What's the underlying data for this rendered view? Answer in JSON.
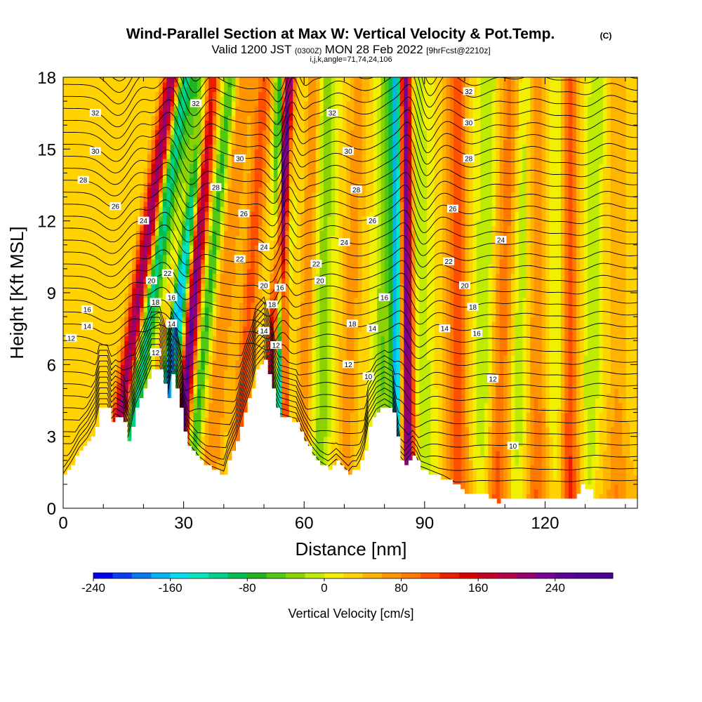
{
  "chart_data": {
    "type": "heatmap",
    "title": "Wind-Parallel Section at Max W: Vertical Velocity & Pot.Temp.",
    "title_mark": "(C)",
    "subtitle_main": "Valid 1200 JST",
    "subtitle_utc": "(0300Z)",
    "subtitle_date": "MON 28 Feb 2022",
    "subtitle_run": "[9hrFcst@2210z]",
    "subtitle_index": "i,j,k,angle=71,74,24,106",
    "xlabel": "Distance [nm]",
    "ylabel": "Height [Kft MSL]",
    "xlim": [
      0,
      143
    ],
    "ylim": [
      0,
      18
    ],
    "x_ticks": [
      "0",
      "30",
      "60",
      "90",
      "120"
    ],
    "y_ticks": [
      "0",
      "3",
      "6",
      "9",
      "12",
      "15",
      "18"
    ],
    "colorbar": {
      "label": "Vertical Velocity [cm/s]",
      "min": -240,
      "max": 300,
      "step": 20,
      "tick_labels": [
        "-240",
        "-160",
        "-80",
        "0",
        "80",
        "160",
        "240"
      ],
      "colors": [
        "#0000f0",
        "#0c3cf5",
        "#0a78f0",
        "#00b4f0",
        "#00dcf0",
        "#00e6be",
        "#00d28c",
        "#00be50",
        "#20b420",
        "#50c814",
        "#8cd200",
        "#beeb00",
        "#f0f000",
        "#ffd200",
        "#ffb400",
        "#ff9600",
        "#ff7800",
        "#ff5000",
        "#f01e00",
        "#dc0000",
        "#c80028",
        "#b4004b",
        "#96006e",
        "#780096",
        "#5a0096",
        "#500096",
        "#4b0096"
      ]
    },
    "terrain_kft": [
      [
        0,
        1.3
      ],
      [
        2,
        1.8
      ],
      [
        4,
        2.4
      ],
      [
        6,
        2.8
      ],
      [
        8,
        3.4
      ],
      [
        9,
        4.2
      ],
      [
        11,
        4.2
      ],
      [
        12,
        3.6
      ],
      [
        13,
        3.8
      ],
      [
        15,
        3.6
      ],
      [
        16,
        2.8
      ],
      [
        17,
        3.4
      ],
      [
        18,
        4.2
      ],
      [
        20,
        5.0
      ],
      [
        22,
        5.8
      ],
      [
        24,
        5.8
      ],
      [
        26,
        4.6
      ],
      [
        27,
        5.6
      ],
      [
        28,
        5.0
      ],
      [
        29,
        4.2
      ],
      [
        30,
        3.2
      ],
      [
        31,
        2.6
      ],
      [
        34,
        2.0
      ],
      [
        37,
        1.6
      ],
      [
        40,
        1.4
      ],
      [
        41,
        2.0
      ],
      [
        43,
        2.8
      ],
      [
        45,
        4.0
      ],
      [
        47,
        5.0
      ],
      [
        48,
        5.8
      ],
      [
        50,
        6.2
      ],
      [
        51,
        5.6
      ],
      [
        52,
        5.0
      ],
      [
        53,
        4.2
      ],
      [
        54,
        3.8
      ],
      [
        58,
        3.6
      ],
      [
        60,
        2.8
      ],
      [
        62,
        2.2
      ],
      [
        64,
        1.8
      ],
      [
        66,
        1.6
      ],
      [
        68,
        1.9
      ],
      [
        71,
        1.4
      ],
      [
        72,
        1.6
      ],
      [
        73,
        1.6
      ],
      [
        74,
        1.9
      ],
      [
        75,
        2.4
      ],
      [
        76,
        3.4
      ],
      [
        78,
        4.0
      ],
      [
        80,
        4.2
      ],
      [
        82,
        4.0
      ],
      [
        83,
        3.0
      ],
      [
        84,
        2.0
      ],
      [
        85,
        1.8
      ],
      [
        86,
        2.0
      ],
      [
        87,
        2.2
      ],
      [
        88,
        2.0
      ],
      [
        89,
        1.6
      ],
      [
        92,
        1.4
      ],
      [
        95,
        1.2
      ],
      [
        98,
        0.9
      ],
      [
        100,
        0.6
      ],
      [
        105,
        0.5
      ],
      [
        108,
        0.3
      ],
      [
        112,
        0.3
      ],
      [
        118,
        0.3
      ],
      [
        125,
        0.3
      ],
      [
        128,
        0.5
      ],
      [
        129,
        0.9
      ],
      [
        131,
        0.8
      ],
      [
        132,
        0.3
      ],
      [
        137,
        0.3
      ],
      [
        143,
        0.3
      ]
    ],
    "w_features": [
      {
        "x0": 11,
        "dxdz": 0.9,
        "w": 200,
        "width": 2.2
      },
      {
        "x0": 14,
        "dxdz": 0.9,
        "w": -150,
        "width": 2.0
      },
      {
        "x0": 19,
        "dxdz": 0.9,
        "w": 140,
        "width": 1.6
      },
      {
        "x0": 22,
        "dxdz": 0.75,
        "w": -230,
        "width": 2.6
      },
      {
        "x0": 28,
        "dxdz": 0.5,
        "w": 240,
        "width": 1.8
      },
      {
        "x0": 31,
        "dxdz": 0.6,
        "w": -90,
        "width": 1.6
      },
      {
        "x0": 36,
        "dxdz": 0.5,
        "w": 60,
        "width": 2.5
      },
      {
        "x0": 43,
        "dxdz": 0.4,
        "w": 90,
        "width": 2.2
      },
      {
        "x0": 50,
        "dxdz": 0.35,
        "w": 260,
        "width": 1.4
      },
      {
        "x0": 53,
        "dxdz": 0.1,
        "w": -240,
        "width": 1.6
      },
      {
        "x0": 55,
        "dxdz": 0.0,
        "w": 200,
        "width": 1.0
      },
      {
        "x0": 59,
        "dxdz": 0.2,
        "w": 60,
        "width": 1.8
      },
      {
        "x0": 64,
        "dxdz": 0.1,
        "w": -50,
        "width": 2.2
      },
      {
        "x0": 70,
        "dxdz": 0.2,
        "w": 50,
        "width": 2.5
      },
      {
        "x0": 79,
        "dxdz": 0.1,
        "w": -60,
        "width": 2.0
      },
      {
        "x0": 83,
        "dxdz": 0.0,
        "w": -210,
        "width": 1.3
      },
      {
        "x0": 86,
        "dxdz": -0.05,
        "w": 220,
        "width": 1.6
      },
      {
        "x0": 90,
        "dxdz": -0.1,
        "w": -40,
        "width": 2.0
      },
      {
        "x0": 98,
        "dxdz": 0.0,
        "w": 90,
        "width": 2.6
      },
      {
        "x0": 104,
        "dxdz": 0.1,
        "w": -40,
        "width": 2.2
      },
      {
        "x0": 108,
        "dxdz": 0.2,
        "w": 70,
        "width": 2.6
      },
      {
        "x0": 113,
        "dxdz": 0.1,
        "w": -40,
        "width": 2.2
      },
      {
        "x0": 118,
        "dxdz": 0.0,
        "w": 60,
        "width": 2.4
      },
      {
        "x0": 123,
        "dxdz": 0.0,
        "w": -30,
        "width": 2.0
      },
      {
        "x0": 126,
        "dxdz": 0.0,
        "w": 90,
        "width": 2.2
      },
      {
        "x0": 131,
        "dxdz": 0.1,
        "w": -40,
        "width": 2.0
      },
      {
        "x0": 138,
        "dxdz": 0.0,
        "w": 40,
        "width": 2.5
      }
    ],
    "isentrope_labels": [
      {
        "x": 8,
        "y": 16.5,
        "text": "32"
      },
      {
        "x": 33,
        "y": 16.9,
        "text": "32"
      },
      {
        "x": 67,
        "y": 16.5,
        "text": "32"
      },
      {
        "x": 101,
        "y": 17.4,
        "text": "32"
      },
      {
        "x": 101,
        "y": 16.1,
        "text": "30"
      },
      {
        "x": 8,
        "y": 14.9,
        "text": "30"
      },
      {
        "x": 44,
        "y": 14.6,
        "text": "30"
      },
      {
        "x": 71,
        "y": 14.9,
        "text": "30"
      },
      {
        "x": 101,
        "y": 14.6,
        "text": "28"
      },
      {
        "x": 5,
        "y": 13.7,
        "text": "28"
      },
      {
        "x": 38,
        "y": 13.4,
        "text": "28"
      },
      {
        "x": 73,
        "y": 13.3,
        "text": "28"
      },
      {
        "x": 13,
        "y": 12.6,
        "text": "26"
      },
      {
        "x": 45,
        "y": 12.3,
        "text": "26"
      },
      {
        "x": 77,
        "y": 12.0,
        "text": "26"
      },
      {
        "x": 97,
        "y": 12.5,
        "text": "26"
      },
      {
        "x": 20,
        "y": 12.0,
        "text": "24"
      },
      {
        "x": 50,
        "y": 10.9,
        "text": "24"
      },
      {
        "x": 70,
        "y": 11.1,
        "text": "24"
      },
      {
        "x": 109,
        "y": 11.2,
        "text": "24"
      },
      {
        "x": 26,
        "y": 9.8,
        "text": "22"
      },
      {
        "x": 44,
        "y": 10.4,
        "text": "22"
      },
      {
        "x": 63,
        "y": 10.2,
        "text": "22"
      },
      {
        "x": 96,
        "y": 10.3,
        "text": "22"
      },
      {
        "x": 22,
        "y": 9.5,
        "text": "20"
      },
      {
        "x": 50,
        "y": 9.3,
        "text": "20"
      },
      {
        "x": 64,
        "y": 9.5,
        "text": "20"
      },
      {
        "x": 100,
        "y": 9.3,
        "text": "20"
      },
      {
        "x": 23,
        "y": 8.6,
        "text": "18"
      },
      {
        "x": 52,
        "y": 8.5,
        "text": "18"
      },
      {
        "x": 72,
        "y": 7.7,
        "text": "18"
      },
      {
        "x": 102,
        "y": 8.4,
        "text": "18"
      },
      {
        "x": 6,
        "y": 8.3,
        "text": "16"
      },
      {
        "x": 27,
        "y": 8.8,
        "text": "16"
      },
      {
        "x": 54,
        "y": 9.2,
        "text": "16"
      },
      {
        "x": 80,
        "y": 8.8,
        "text": "16"
      },
      {
        "x": 103,
        "y": 7.3,
        "text": "16"
      },
      {
        "x": 6,
        "y": 7.6,
        "text": "14"
      },
      {
        "x": 27,
        "y": 7.7,
        "text": "14"
      },
      {
        "x": 50,
        "y": 7.4,
        "text": "14"
      },
      {
        "x": 77,
        "y": 7.5,
        "text": "14"
      },
      {
        "x": 95,
        "y": 7.5,
        "text": "14"
      },
      {
        "x": 2,
        "y": 7.1,
        "text": "12"
      },
      {
        "x": 23,
        "y": 6.5,
        "text": "12"
      },
      {
        "x": 53,
        "y": 6.8,
        "text": "12"
      },
      {
        "x": 71,
        "y": 6.0,
        "text": "12"
      },
      {
        "x": 107,
        "y": 5.4,
        "text": "12"
      },
      {
        "x": 76,
        "y": 5.5,
        "text": "10"
      },
      {
        "x": 112,
        "y": 2.6,
        "text": "10"
      }
    ]
  }
}
